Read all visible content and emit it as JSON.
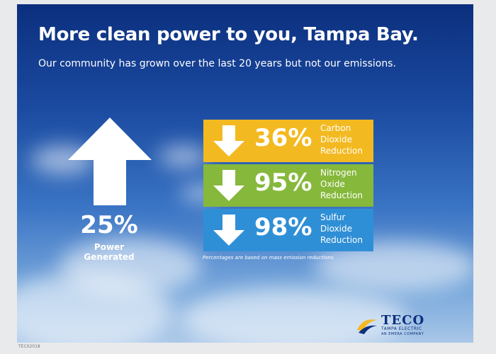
{
  "title": "More clean power to you, Tampa Bay.",
  "subtitle": "Our community has grown over the last 20 years but not our emissions.",
  "power": {
    "percent": "25%",
    "caption_line1": "Power",
    "caption_line2": "Generated",
    "icon": "up-arrow-icon"
  },
  "reductions": [
    {
      "percent": "36%",
      "line1": "Carbon",
      "line2": "Dioxide",
      "line3": "Reduction",
      "color": "#f3b920",
      "icon": "down-arrow-icon"
    },
    {
      "percent": "95%",
      "line1": "Nitrogen",
      "line2": "Oxide",
      "line3": "Reduction",
      "color": "#86b83c",
      "icon": "down-arrow-icon"
    },
    {
      "percent": "98%",
      "line1": "Sulfur",
      "line2": "Dioxide",
      "line3": "Reduction",
      "color": "#2f8fd6",
      "icon": "down-arrow-icon"
    }
  ],
  "footnote": "Percentages are based on mass emission reductions",
  "logo": {
    "name": "TECO",
    "line1": "TAMPA ELECTRIC",
    "line2": "AN EMERA COMPANY"
  },
  "code": "TEC02018"
}
